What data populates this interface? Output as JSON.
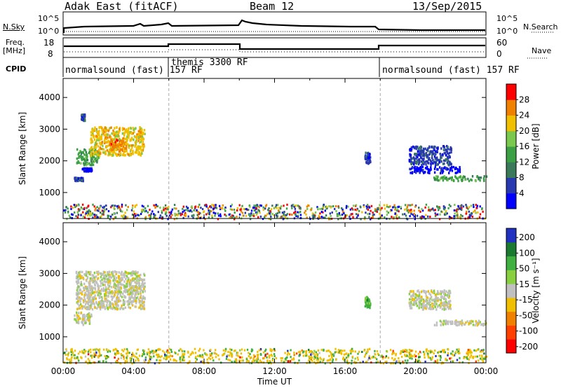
{
  "header": {
    "title": "Adak East (fitACF)",
    "beam": "Beam 12",
    "date": "13/Sep/2015"
  },
  "side_labels": {
    "nsky": "N.Sky",
    "nsearch": "N.Search",
    "freq": "Freq.",
    "freq_unit": "[MHz]",
    "nave": "Nave",
    "cpid": "CPID"
  },
  "noise_panel": {
    "left_ticks": [
      "10^5",
      "10^0"
    ],
    "right_ticks": [
      "10^5",
      "10^0"
    ]
  },
  "freq_panel": {
    "left_ticks": [
      "18",
      "8"
    ],
    "right_ticks": [
      "60",
      "0"
    ]
  },
  "cpid_panel": {
    "programs": [
      {
        "label": "normalsound (fast) 157 RF",
        "start_hour": 0
      },
      {
        "label": "themis 3300 RF",
        "start_hour": 6
      },
      {
        "label": "normalsound (fast) 157 RF",
        "start_hour": 18
      }
    ]
  },
  "colors": {
    "power": [
      "#0000ff",
      "#2838b0",
      "#3a7a5a",
      "#3aa043",
      "#7ac84e",
      "#f0c000",
      "#f08000",
      "#ff0000"
    ],
    "velocity": [
      "#2030c0",
      "#1a7a30",
      "#40b040",
      "#88d040",
      "#c0c0c0",
      "#f0c000",
      "#f08000",
      "#ff4000",
      "#ff0000"
    ],
    "ground_scatter": "#c0c0c0"
  },
  "chart_data": [
    {
      "type": "heatmap",
      "title": "Power",
      "ylabel": "Slant Range [km]",
      "yticks": [
        "1000",
        "2000",
        "3000",
        "4000"
      ],
      "ylim": [
        180,
        4600
      ],
      "xlim": [
        0,
        24
      ],
      "colorbar_label": "Power [dB]",
      "colorbar_ticks": [
        "4",
        "8",
        "12",
        "16",
        "20",
        "24",
        "28"
      ],
      "echo_regions": [
        {
          "t0": 0.7,
          "t1": 2.0,
          "r0": 1900,
          "r1": 2400,
          "level": 3
        },
        {
          "t0": 1.5,
          "t1": 4.6,
          "r0": 2200,
          "r1": 3100,
          "level": 5
        },
        {
          "t0": 2.6,
          "t1": 3.6,
          "r0": 2350,
          "r1": 2750,
          "level": 6
        },
        {
          "t0": 0.6,
          "t1": 1.1,
          "r0": 1400,
          "r1": 1500,
          "level": 1
        },
        {
          "t0": 1.0,
          "t1": 1.6,
          "r0": 1700,
          "r1": 1800,
          "level": 0
        },
        {
          "t0": 1.0,
          "t1": 1.2,
          "r0": 3300,
          "r1": 3500,
          "level": 1
        },
        {
          "t0": 17.1,
          "t1": 17.4,
          "r0": 1950,
          "r1": 2300,
          "level": 1
        },
        {
          "t0": 19.6,
          "t1": 22.0,
          "r0": 1900,
          "r1": 2500,
          "level": 1
        },
        {
          "t0": 19.6,
          "t1": 22.5,
          "r0": 1650,
          "r1": 1850,
          "level": 0
        },
        {
          "t0": 21.0,
          "t1": 24.0,
          "r0": 1400,
          "r1": 1550,
          "level": 3
        },
        {
          "t0": 0.0,
          "t1": 24.0,
          "r0": 190,
          "r1": 650,
          "level": 2
        }
      ]
    },
    {
      "type": "heatmap",
      "title": "Velocity",
      "ylabel": "Slant Range [km]",
      "yticks": [
        "1000",
        "2000",
        "3000",
        "4000"
      ],
      "ylim": [
        180,
        4600
      ],
      "xlim": [
        0,
        24
      ],
      "xlabel": "Time UT",
      "xticks": [
        "00:00",
        "04:00",
        "08:00",
        "12:00",
        "16:00",
        "20:00",
        "00:00"
      ],
      "colorbar_label": "Velocity [m s⁻¹]",
      "colorbar_ticks": [
        "200",
        "100",
        "50",
        "15",
        "-15",
        "-50",
        "-100",
        "-200"
      ],
      "echo_regions": [
        {
          "t0": 0.7,
          "t1": 4.6,
          "r0": 1900,
          "r1": 3100,
          "level": 4
        },
        {
          "t0": 0.6,
          "t1": 1.6,
          "r0": 1400,
          "r1": 1800,
          "level": 4
        },
        {
          "t0": 17.1,
          "t1": 17.4,
          "r0": 1950,
          "r1": 2300,
          "level": 2
        },
        {
          "t0": 19.6,
          "t1": 22.0,
          "r0": 1900,
          "r1": 2500,
          "level": 4
        },
        {
          "t0": 21.0,
          "t1": 24.0,
          "r0": 1400,
          "r1": 1550,
          "level": 4
        },
        {
          "t0": 0.0,
          "t1": 24.0,
          "r0": 190,
          "r1": 650,
          "level": 5
        }
      ]
    }
  ]
}
